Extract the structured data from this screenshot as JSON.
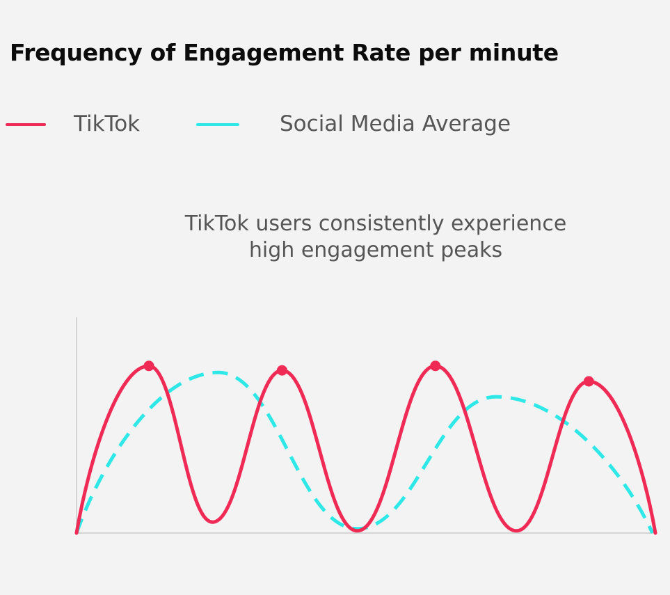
{
  "title": "Frequency of Engagement Rate per minute",
  "legend": [
    {
      "label": "TikTok",
      "color": "#ee2a55",
      "style": "solid"
    },
    {
      "label": "Social Media Average",
      "color": "#2ee8e8",
      "style": "dashed"
    }
  ],
  "annotation": {
    "line1": "TikTok users consistently experience",
    "line2": "high engagement peaks"
  },
  "chart_data": {
    "type": "line",
    "title": "Frequency of Engagement Rate per minute",
    "xlabel": "",
    "ylabel": "",
    "xlim": [
      0,
      10
    ],
    "ylim": [
      0,
      10
    ],
    "grid": false,
    "legend_position": "top-left",
    "axis_ticks": "none",
    "series": [
      {
        "name": "TikTok",
        "color": "#ee2a55",
        "line_style": "solid",
        "smooth": true,
        "points": [
          {
            "x": 0,
            "y": 0
          },
          {
            "x": 1.25,
            "y": 7.6
          },
          {
            "x": 2.35,
            "y": 0.5
          },
          {
            "x": 3.55,
            "y": 7.4
          },
          {
            "x": 4.85,
            "y": 0.1
          },
          {
            "x": 6.2,
            "y": 7.6
          },
          {
            "x": 7.6,
            "y": 0.1
          },
          {
            "x": 8.85,
            "y": 6.9
          },
          {
            "x": 10,
            "y": 0
          }
        ],
        "markers": [
          {
            "x": 1.25,
            "y": 7.6
          },
          {
            "x": 3.55,
            "y": 7.4
          },
          {
            "x": 6.2,
            "y": 7.6
          },
          {
            "x": 8.85,
            "y": 6.9
          }
        ]
      },
      {
        "name": "Social Media Average",
        "color": "#2ee8e8",
        "line_style": "dashed",
        "smooth": true,
        "points": [
          {
            "x": 0,
            "y": 0
          },
          {
            "x": 2.45,
            "y": 7.3
          },
          {
            "x": 4.85,
            "y": 0.2
          },
          {
            "x": 7.25,
            "y": 6.2
          },
          {
            "x": 9.95,
            "y": 0
          }
        ]
      }
    ]
  }
}
